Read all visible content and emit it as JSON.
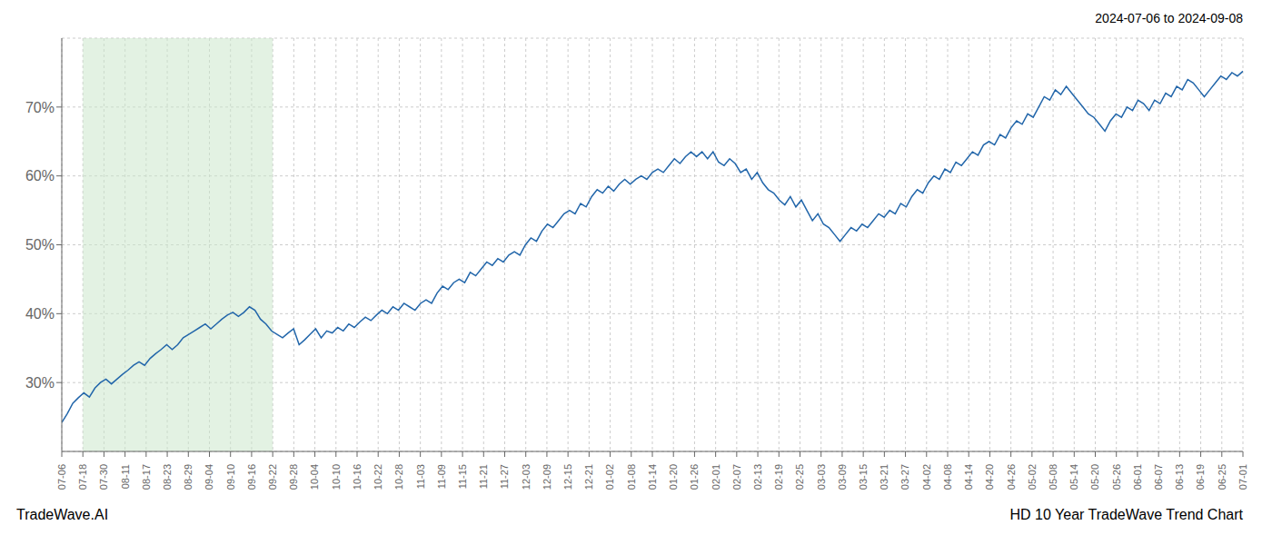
{
  "chart_data": {
    "type": "line",
    "title": "HD 10 Year TradeWave Trend Chart",
    "subtitle": "2024-07-06 to 2024-09-08",
    "annotations": [
      "TradeWave.AI"
    ],
    "color": "#2266aa",
    "grid": true,
    "xlim": [
      0,
      56
    ],
    "xticks": [
      {
        "value": 0,
        "label": "07-06"
      },
      {
        "value": 1,
        "label": "07-18"
      },
      {
        "value": 2,
        "label": "07-30"
      },
      {
        "value": 3,
        "label": "08-11"
      },
      {
        "value": 4,
        "label": "08-17"
      },
      {
        "value": 5,
        "label": "08-23"
      },
      {
        "value": 6,
        "label": "08-29"
      },
      {
        "value": 7,
        "label": "09-04"
      },
      {
        "value": 8,
        "label": "09-10"
      },
      {
        "value": 9,
        "label": "09-16"
      },
      {
        "value": 10,
        "label": "09-22"
      },
      {
        "value": 11,
        "label": "09-28"
      },
      {
        "value": 12,
        "label": "10-04"
      },
      {
        "value": 13,
        "label": "10-10"
      },
      {
        "value": 14,
        "label": "10-16"
      },
      {
        "value": 15,
        "label": "10-22"
      },
      {
        "value": 16,
        "label": "10-28"
      },
      {
        "value": 17,
        "label": "11-03"
      },
      {
        "value": 18,
        "label": "11-09"
      },
      {
        "value": 19,
        "label": "11-15"
      },
      {
        "value": 20,
        "label": "11-21"
      },
      {
        "value": 21,
        "label": "11-27"
      },
      {
        "value": 22,
        "label": "12-03"
      },
      {
        "value": 23,
        "label": "12-09"
      },
      {
        "value": 24,
        "label": "12-15"
      },
      {
        "value": 25,
        "label": "12-21"
      },
      {
        "value": 26,
        "label": "01-02"
      },
      {
        "value": 27,
        "label": "01-08"
      },
      {
        "value": 28,
        "label": "01-14"
      },
      {
        "value": 29,
        "label": "01-20"
      },
      {
        "value": 30,
        "label": "01-26"
      },
      {
        "value": 31,
        "label": "02-01"
      },
      {
        "value": 32,
        "label": "02-07"
      },
      {
        "value": 33,
        "label": "02-13"
      },
      {
        "value": 34,
        "label": "02-19"
      },
      {
        "value": 35,
        "label": "02-25"
      },
      {
        "value": 36,
        "label": "03-03"
      },
      {
        "value": 37,
        "label": "03-09"
      },
      {
        "value": 38,
        "label": "03-15"
      },
      {
        "value": 39,
        "label": "03-21"
      },
      {
        "value": 40,
        "label": "03-27"
      },
      {
        "value": 41,
        "label": "04-02"
      },
      {
        "value": 42,
        "label": "04-08"
      },
      {
        "value": 43,
        "label": "04-14"
      },
      {
        "value": 44,
        "label": "04-20"
      },
      {
        "value": 45,
        "label": "04-26"
      },
      {
        "value": 46,
        "label": "05-02"
      },
      {
        "value": 47,
        "label": "05-08"
      },
      {
        "value": 48,
        "label": "05-14"
      },
      {
        "value": 49,
        "label": "05-20"
      },
      {
        "value": 50,
        "label": "05-26"
      },
      {
        "value": 51,
        "label": "06-01"
      },
      {
        "value": 52,
        "label": "06-07"
      },
      {
        "value": 53,
        "label": "06-13"
      },
      {
        "value": 54,
        "label": "06-19"
      },
      {
        "value": 55,
        "label": "06-25"
      },
      {
        "value": 56,
        "label": "07-01"
      }
    ],
    "ylim": [
      20,
      80
    ],
    "yticks": [
      {
        "value": 30,
        "label": "30%"
      },
      {
        "value": 40,
        "label": "40%"
      },
      {
        "value": 50,
        "label": "50%"
      },
      {
        "value": 60,
        "label": "60%"
      },
      {
        "value": 70,
        "label": "70%"
      }
    ],
    "shade": {
      "x": [
        1,
        10
      ],
      "color": "#cce8cc"
    },
    "values": [
      24.2,
      25.5,
      27.0,
      27.8,
      28.5,
      27.9,
      29.2,
      30.0,
      30.5,
      29.8,
      30.5,
      31.2,
      31.8,
      32.5,
      33.0,
      32.5,
      33.5,
      34.2,
      34.8,
      35.5,
      34.8,
      35.5,
      36.5,
      37.0,
      37.5,
      38.0,
      38.5,
      37.8,
      38.5,
      39.2,
      39.8,
      40.2,
      39.6,
      40.2,
      41.0,
      40.5,
      39.2,
      38.5,
      37.5,
      37.0,
      36.5,
      37.2,
      37.8,
      35.5,
      36.2,
      37.0,
      37.8,
      36.5,
      37.5,
      37.2,
      38.0,
      37.5,
      38.5,
      38.0,
      38.8,
      39.5,
      39.0,
      39.8,
      40.5,
      40.0,
      41.0,
      40.5,
      41.5,
      41.0,
      40.5,
      41.5,
      42.0,
      41.5,
      43.0,
      44.0,
      43.5,
      44.5,
      45.0,
      44.5,
      46.0,
      45.5,
      46.5,
      47.5,
      47.0,
      48.0,
      47.5,
      48.5,
      49.0,
      48.5,
      50.0,
      51.0,
      50.5,
      52.0,
      53.0,
      52.5,
      53.5,
      54.5,
      55.0,
      54.5,
      56.0,
      55.5,
      57.0,
      58.0,
      57.5,
      58.5,
      57.8,
      58.8,
      59.5,
      58.8,
      59.5,
      60.0,
      59.5,
      60.5,
      61.0,
      60.5,
      61.5,
      62.5,
      61.8,
      62.8,
      63.5,
      62.8,
      63.5,
      62.5,
      63.5,
      62.0,
      61.5,
      62.5,
      61.8,
      60.5,
      61.0,
      59.5,
      60.5,
      59.0,
      58.0,
      57.5,
      56.5,
      55.8,
      57.0,
      55.5,
      56.5,
      55.0,
      53.5,
      54.5,
      53.0,
      52.5,
      51.5,
      50.5,
      51.5,
      52.5,
      52.0,
      53.0,
      52.5,
      53.5,
      54.5,
      54.0,
      55.0,
      54.5,
      56.0,
      55.5,
      57.0,
      58.0,
      57.5,
      59.0,
      60.0,
      59.5,
      61.0,
      60.5,
      62.0,
      61.5,
      62.5,
      63.5,
      63.0,
      64.5,
      65.0,
      64.5,
      66.0,
      65.5,
      67.0,
      68.0,
      67.5,
      69.0,
      68.5,
      70.0,
      71.5,
      71.0,
      72.5,
      71.8,
      73.0,
      72.0,
      71.0,
      70.0,
      69.0,
      68.5,
      67.5,
      66.5,
      68.0,
      69.0,
      68.5,
      70.0,
      69.5,
      71.0,
      70.5,
      69.5,
      71.0,
      70.5,
      72.0,
      71.5,
      73.0,
      72.5,
      74.0,
      73.5,
      72.5,
      71.5,
      72.5,
      73.5,
      74.5,
      74.0,
      75.0,
      74.5,
      75.2
    ]
  }
}
